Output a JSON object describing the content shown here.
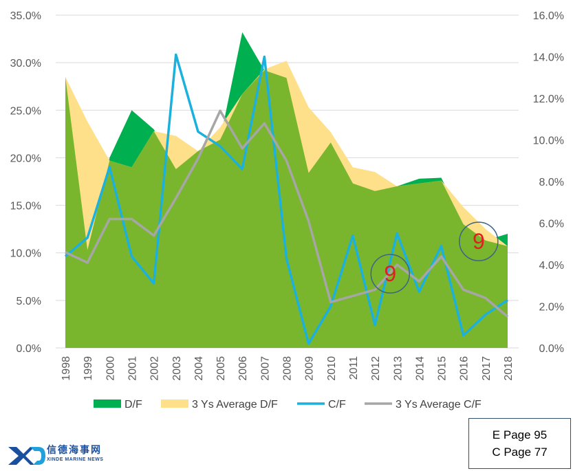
{
  "chart_data": {
    "type": "area",
    "categories": [
      "1998",
      "1999",
      "2000",
      "2001",
      "2002",
      "2003",
      "2004",
      "2005",
      "2006",
      "2007",
      "2008",
      "2009",
      "2010",
      "2011",
      "2012",
      "2013",
      "2014",
      "2015",
      "2016",
      "2017",
      "2018"
    ],
    "y_left": {
      "ylim": [
        0,
        35
      ],
      "ticks": [
        "0.0%",
        "5.0%",
        "10.0%",
        "15.0%",
        "20.0%",
        "25.0%",
        "30.0%",
        "35.0%"
      ]
    },
    "y_right": {
      "ylim": [
        0,
        16
      ],
      "ticks": [
        "0.0%",
        "2.0%",
        "4.0%",
        "6.0%",
        "8.0%",
        "10.0%",
        "12.0%",
        "14.0%",
        "16.0%"
      ]
    },
    "series": [
      {
        "name": "D/F",
        "type": "area",
        "axis": "left",
        "color": "#00b050",
        "values": [
          28.5,
          10.3,
          20.0,
          25.0,
          23.0,
          18.8,
          20.7,
          21.9,
          33.2,
          29.2,
          28.4,
          18.4,
          21.6,
          17.3,
          16.5,
          17.0,
          17.8,
          17.9,
          13.0,
          11.3,
          12.0
        ]
      },
      {
        "name": "3 Ys Average D/F",
        "type": "area",
        "axis": "left",
        "color": "#ffe08a",
        "values": [
          28.5,
          23.8,
          19.7,
          19.0,
          22.8,
          22.3,
          20.7,
          23.2,
          26.7,
          29.3,
          30.2,
          25.3,
          22.7,
          19.0,
          18.5,
          17.0,
          17.3,
          17.6,
          14.8,
          12.5,
          10.7
        ]
      },
      {
        "name": "C/F",
        "type": "line",
        "axis": "right",
        "color": "#1cb0dc",
        "values": [
          4.4,
          5.3,
          8.7,
          4.4,
          3.1,
          14.1,
          10.4,
          9.7,
          8.6,
          14.0,
          4.3,
          0.2,
          2.0,
          5.4,
          1.1,
          5.5,
          2.7,
          4.9,
          0.6,
          1.6,
          2.3
        ]
      },
      {
        "name": "3 Ys Average C/F",
        "type": "line",
        "axis": "right",
        "color": "#a6a6a6",
        "values": [
          4.6,
          4.1,
          6.2,
          6.2,
          5.4,
          7.2,
          9.1,
          11.4,
          9.6,
          10.8,
          9.0,
          6.1,
          2.2,
          2.5,
          2.8,
          4.0,
          3.2,
          4.4,
          2.8,
          2.4,
          1.5
        ]
      }
    ],
    "legend_position": "bottom",
    "annotations": [
      {
        "text": "9",
        "category": "2013",
        "value_left": 7.8
      },
      {
        "text": "9",
        "category": "2017",
        "value_left": 11.2
      }
    ]
  },
  "page_ref": {
    "line1": "E Page 95",
    "line2": "C Page 77"
  },
  "logo": {
    "mark": "XD",
    "chinese": "信德海事网",
    "english": "XINDE MARINE NEWS"
  }
}
